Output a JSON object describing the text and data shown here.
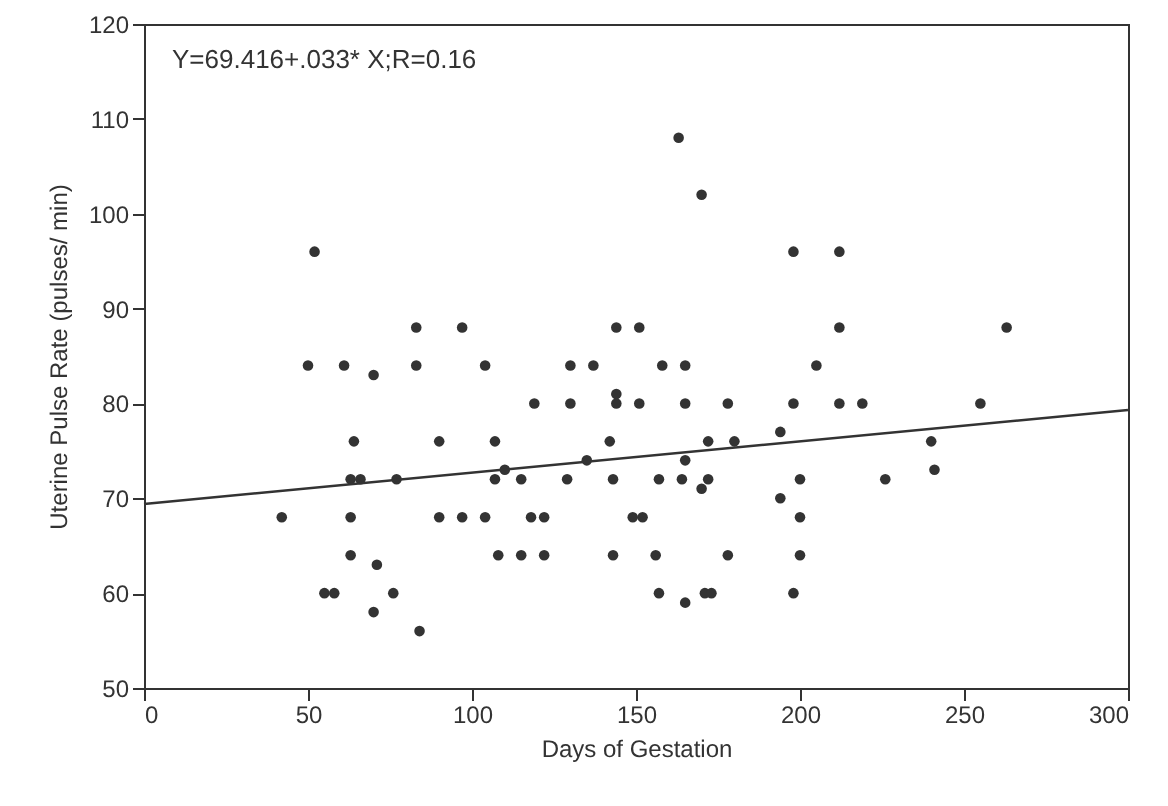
{
  "chart_data": {
    "type": "scatter",
    "xlabel": "Days of Gestation",
    "ylabel": "Uterine Pulse Rate (pulses/ min)",
    "annotations": [
      "Y=69.416+.033* X;R=0.16"
    ],
    "xlim": [
      0,
      300
    ],
    "xticks": [
      0,
      50,
      100,
      150,
      200,
      250,
      300
    ],
    "ylim": [
      50,
      120
    ],
    "yticks": [
      50,
      60,
      70,
      80,
      90,
      100,
      110,
      120
    ],
    "grid": false,
    "series": [
      {
        "marker": "circle",
        "color": "#333333",
        "x": [
          52,
          50,
          61,
          70,
          83,
          83,
          97,
          104,
          64,
          90,
          107,
          63,
          66,
          77,
          107,
          110,
          42,
          63,
          90,
          97,
          104,
          63,
          108,
          71,
          55,
          58,
          76,
          70,
          84,
          163,
          170,
          198,
          212,
          144,
          151,
          212,
          130,
          137,
          158,
          165,
          205,
          119,
          130,
          144,
          144,
          151,
          165,
          178,
          198,
          212,
          219,
          142,
          172,
          180,
          194,
          135,
          165,
          115,
          129,
          143,
          157,
          164,
          172,
          170,
          200,
          118,
          122,
          149,
          152,
          194,
          200,
          115,
          122,
          143,
          156,
          178,
          200,
          157,
          165,
          171,
          173,
          198,
          263,
          255,
          240,
          226,
          241
        ],
        "values": [
          96,
          84,
          84,
          83,
          88,
          84,
          88,
          84,
          76,
          76,
          76,
          72,
          72,
          72,
          72,
          73,
          68,
          68,
          68,
          68,
          68,
          64,
          64,
          63,
          60,
          60,
          60,
          58,
          56,
          108,
          102,
          96,
          96,
          88,
          88,
          88,
          84,
          84,
          84,
          84,
          84,
          80,
          80,
          81,
          80,
          80,
          80,
          80,
          80,
          80,
          80,
          76,
          76,
          76,
          77,
          74,
          74,
          72,
          72,
          72,
          72,
          72,
          72,
          71,
          72,
          68,
          68,
          68,
          68,
          70,
          68,
          64,
          64,
          64,
          64,
          64,
          64,
          60,
          59,
          60,
          60,
          60,
          88,
          80,
          76,
          72,
          73
        ]
      },
      {
        "type": "line",
        "marker": "none",
        "color": "#333333",
        "x": [
          0,
          300
        ],
        "values": [
          69.4,
          79.3
        ]
      }
    ]
  }
}
